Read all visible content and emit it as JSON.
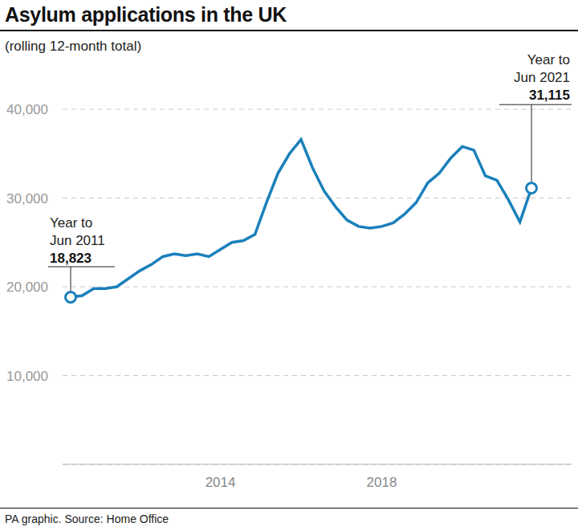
{
  "chart_data": {
    "type": "line",
    "title": "Asylum applications in the UK",
    "subtitle": "(rolling 12-month total)",
    "source": "PA graphic. Source: Home Office",
    "categories": [
      null,
      null,
      null,
      null,
      null,
      null,
      null,
      null,
      null,
      null,
      null,
      null,
      null,
      "2014",
      null,
      null,
      null,
      null,
      null,
      null,
      null,
      null,
      null,
      null,
      null,
      null,
      null,
      "2018",
      null,
      null,
      null,
      null,
      null,
      null,
      null,
      null,
      null,
      null,
      null,
      null,
      null
    ],
    "values": [
      18823,
      19000,
      19800,
      19800,
      20000,
      20900,
      21800,
      22500,
      23400,
      23700,
      23500,
      23700,
      23400,
      24200,
      25000,
      25200,
      25900,
      29500,
      32800,
      35000,
      36600,
      33400,
      30800,
      29000,
      27500,
      26800,
      26600,
      26800,
      27200,
      28200,
      29500,
      31700,
      32800,
      34500,
      35800,
      35400,
      32500,
      32000,
      29800,
      27300,
      31115
    ],
    "color": "#1a80bb",
    "ylim": [
      0,
      40000
    ],
    "yticks": [
      {
        "value": 10000,
        "label": "10,000"
      },
      {
        "value": 20000,
        "label": "20,000"
      },
      {
        "value": 30000,
        "label": "30,000"
      },
      {
        "value": 40000,
        "label": "40,000"
      }
    ],
    "grid": true,
    "annotations": [
      {
        "index": 0,
        "text": [
          "Year to",
          "Jun 2011"
        ],
        "value_label": "18,823"
      },
      {
        "index": 40,
        "text": [
          "Year to",
          "Jun 2021"
        ],
        "value_label": "31,115"
      }
    ]
  }
}
